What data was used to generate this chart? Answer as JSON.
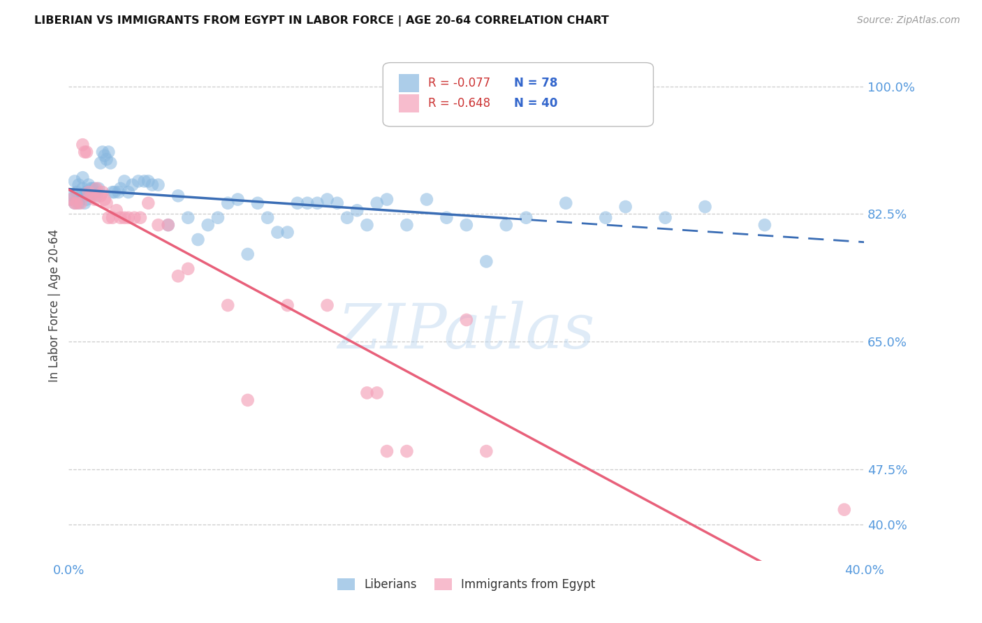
{
  "title": "LIBERIAN VS IMMIGRANTS FROM EGYPT IN LABOR FORCE | AGE 20-64 CORRELATION CHART",
  "source": "Source: ZipAtlas.com",
  "ylabel": "In Labor Force | Age 20-64",
  "xlim": [
    0.0,
    0.4
  ],
  "ylim": [
    0.35,
    1.05
  ],
  "ytick_vals": [
    0.4,
    0.475,
    0.65,
    0.825,
    1.0
  ],
  "ytick_labels": [
    "40.0%",
    "47.5%",
    "65.0%",
    "82.5%",
    "100.0%"
  ],
  "xtick_vals": [
    0.0,
    0.05,
    0.1,
    0.15,
    0.2,
    0.25,
    0.3,
    0.35,
    0.4
  ],
  "xtick_labels": [
    "0.0%",
    "",
    "",
    "",
    "",
    "",
    "",
    "",
    "40.0%"
  ],
  "grid_color": "#cccccc",
  "background_color": "#ffffff",
  "blue_color": "#89b8e0",
  "pink_color": "#f4a0b8",
  "blue_line_solid_color": "#3a6db5",
  "pink_line_color": "#e8607a",
  "tick_color": "#5599dd",
  "watermark_text": "ZIPatlas",
  "legend_r_blue": "R = -0.077",
  "legend_n_blue": "N = 78",
  "legend_r_pink": "R = -0.648",
  "legend_n_pink": "N = 40",
  "blue_line_x_solid_end": 0.22,
  "blue_line_x_end": 0.4,
  "blue_x": [
    0.001,
    0.002,
    0.003,
    0.003,
    0.004,
    0.005,
    0.005,
    0.006,
    0.007,
    0.007,
    0.008,
    0.008,
    0.009,
    0.009,
    0.01,
    0.01,
    0.011,
    0.011,
    0.012,
    0.012,
    0.013,
    0.013,
    0.014,
    0.015,
    0.016,
    0.017,
    0.018,
    0.019,
    0.02,
    0.021,
    0.022,
    0.023,
    0.025,
    0.026,
    0.028,
    0.03,
    0.032,
    0.035,
    0.038,
    0.04,
    0.042,
    0.045,
    0.05,
    0.055,
    0.06,
    0.065,
    0.07,
    0.075,
    0.08,
    0.085,
    0.09,
    0.095,
    0.1,
    0.105,
    0.11,
    0.115,
    0.12,
    0.125,
    0.13,
    0.135,
    0.14,
    0.145,
    0.15,
    0.155,
    0.16,
    0.17,
    0.18,
    0.19,
    0.2,
    0.21,
    0.22,
    0.23,
    0.25,
    0.27,
    0.28,
    0.3,
    0.32,
    0.35
  ],
  "blue_y": [
    0.845,
    0.85,
    0.84,
    0.87,
    0.855,
    0.84,
    0.865,
    0.85,
    0.86,
    0.875,
    0.85,
    0.84,
    0.855,
    0.845,
    0.855,
    0.865,
    0.86,
    0.85,
    0.86,
    0.855,
    0.86,
    0.855,
    0.85,
    0.86,
    0.895,
    0.91,
    0.905,
    0.9,
    0.91,
    0.895,
    0.855,
    0.855,
    0.855,
    0.86,
    0.87,
    0.855,
    0.865,
    0.87,
    0.87,
    0.87,
    0.865,
    0.865,
    0.81,
    0.85,
    0.82,
    0.79,
    0.81,
    0.82,
    0.84,
    0.845,
    0.77,
    0.84,
    0.82,
    0.8,
    0.8,
    0.84,
    0.84,
    0.84,
    0.845,
    0.84,
    0.82,
    0.83,
    0.81,
    0.84,
    0.845,
    0.81,
    0.845,
    0.82,
    0.81,
    0.76,
    0.81,
    0.82,
    0.84,
    0.82,
    0.835,
    0.82,
    0.835,
    0.81
  ],
  "pink_x": [
    0.001,
    0.003,
    0.004,
    0.006,
    0.007,
    0.008,
    0.009,
    0.01,
    0.011,
    0.012,
    0.013,
    0.014,
    0.016,
    0.017,
    0.018,
    0.019,
    0.02,
    0.022,
    0.024,
    0.026,
    0.028,
    0.03,
    0.033,
    0.036,
    0.04,
    0.045,
    0.05,
    0.055,
    0.06,
    0.08,
    0.09,
    0.11,
    0.13,
    0.15,
    0.155,
    0.16,
    0.17,
    0.2,
    0.21,
    0.39
  ],
  "pink_y": [
    0.845,
    0.84,
    0.84,
    0.84,
    0.92,
    0.91,
    0.91,
    0.855,
    0.85,
    0.85,
    0.845,
    0.86,
    0.85,
    0.855,
    0.845,
    0.84,
    0.82,
    0.82,
    0.83,
    0.82,
    0.82,
    0.82,
    0.82,
    0.82,
    0.84,
    0.81,
    0.81,
    0.74,
    0.75,
    0.7,
    0.57,
    0.7,
    0.7,
    0.58,
    0.58,
    0.5,
    0.5,
    0.68,
    0.5,
    0.42
  ]
}
